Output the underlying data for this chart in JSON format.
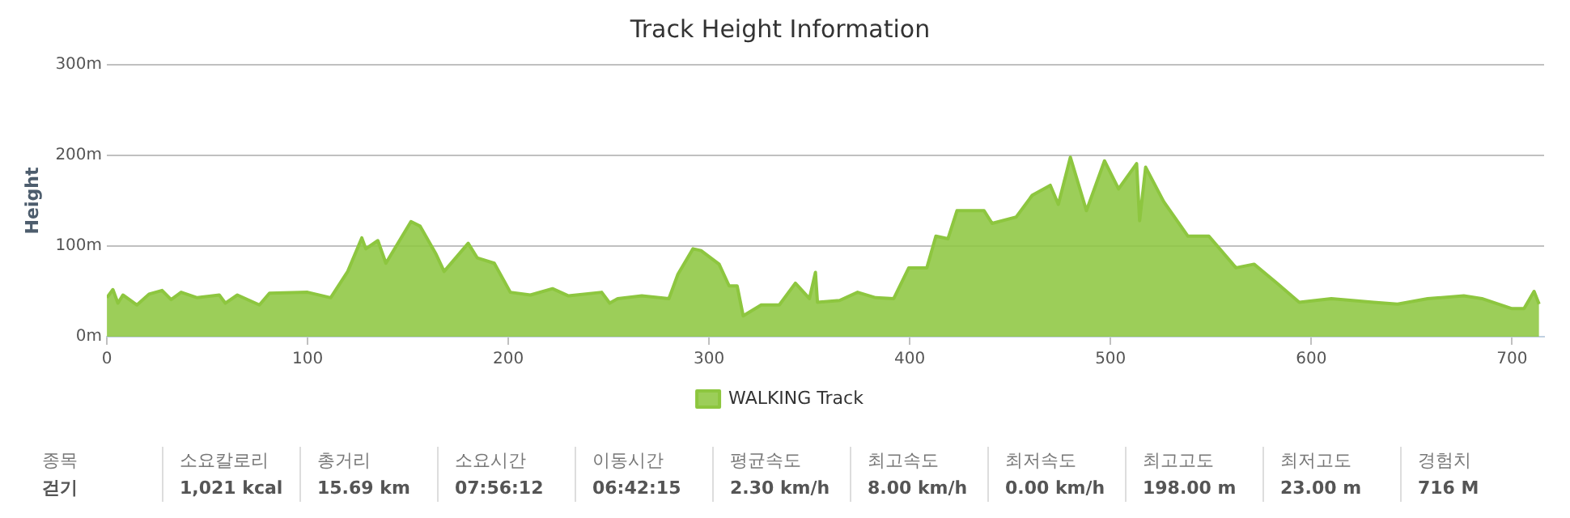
{
  "chart_data": {
    "type": "area",
    "title": "Track Height Information",
    "ylabel": "Height",
    "xlim": [
      0,
      716
    ],
    "xticks": [
      0,
      100,
      200,
      300,
      400,
      500,
      600,
      700
    ],
    "ylim": [
      0,
      300
    ],
    "yticks": [
      {
        "value": 0,
        "label": "0m"
      },
      {
        "value": 100,
        "label": "100m"
      },
      {
        "value": 200,
        "label": "200m"
      },
      {
        "value": 300,
        "label": "300m"
      }
    ],
    "grid": "y",
    "legend": "bottom",
    "marker": "none",
    "series": [
      {
        "name": "WALKING Track",
        "color": "#8dc63f",
        "x": [
          0,
          3,
          5.5,
          8,
          15,
          21,
          27.5,
          32,
          37,
          45,
          56,
          59,
          65,
          76,
          81,
          100,
          111.5,
          120,
          127,
          129,
          135,
          139,
          151.5,
          156,
          164,
          168,
          180,
          184.5,
          193,
          201,
          211,
          222,
          230,
          246.5,
          250.5,
          254.5,
          266.5,
          280,
          284.5,
          292,
          296,
          305,
          310,
          314,
          317,
          326,
          335,
          343,
          350,
          353,
          354,
          365,
          374,
          383,
          392,
          399.5,
          408.5,
          413,
          419,
          423.5,
          437,
          441,
          453,
          461,
          470,
          474,
          480,
          488,
          497,
          504,
          513,
          514.5,
          517.5,
          526.5,
          538.5,
          549,
          562.5,
          571.5,
          583,
          594,
          610,
          631,
          643,
          658,
          676,
          685,
          700,
          706,
          711,
          713.5
        ],
        "values": [
          43,
          52,
          37,
          46,
          35,
          47,
          51,
          41,
          49,
          43,
          46,
          37,
          46,
          35,
          48,
          49,
          43,
          72,
          109,
          97,
          106,
          81,
          127,
          122,
          91,
          72,
          103,
          87,
          81,
          49,
          46,
          53,
          45,
          49,
          37,
          42,
          45,
          42,
          69,
          97,
          95,
          80,
          56,
          56,
          23,
          35,
          35,
          59,
          42,
          71,
          38,
          40,
          49,
          43,
          42,
          76,
          76,
          111,
          108,
          139,
          139,
          125,
          132,
          156,
          167,
          146,
          198,
          139,
          194,
          163,
          191,
          128,
          187,
          149,
          111,
          111,
          76,
          80,
          59,
          38,
          42,
          38,
          36,
          42,
          45,
          42,
          31,
          31,
          50,
          36
        ]
      }
    ],
    "annotations": [
      "종목",
      "걷기",
      "소요칼로리",
      "1,021 kcal",
      "총거리",
      "15.69 km",
      "소요시간",
      "07:56:12",
      "이동시간",
      "06:42:15",
      "평균속도",
      "2.30 km/h",
      "최고속도",
      "8.00 km/h",
      "최저속도",
      "0.00 km/h",
      "최고고도",
      "198.00 m",
      "최저고도",
      "23.00 m",
      "경험치",
      "716 M"
    ]
  }
}
